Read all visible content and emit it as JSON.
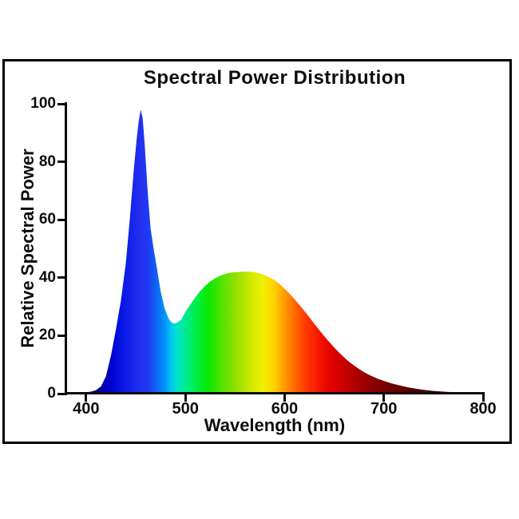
{
  "frame": {
    "background": "#ffffff",
    "border_color": "#000000"
  },
  "chart_data": {
    "type": "area",
    "title": "Spectral Power Distribution",
    "xlabel": "Wavelength (nm)",
    "ylabel": "Relative Spectral Power",
    "xlim": [
      380,
      800
    ],
    "ylim": [
      0,
      100
    ],
    "x_ticks": [
      400,
      500,
      600,
      700,
      800
    ],
    "y_ticks": [
      0,
      20,
      40,
      60,
      80,
      100
    ],
    "grid": false,
    "legend": "none",
    "description": "White LED spectrum: narrow blue peak ~455 nm (value 98), dip ~487 nm (value 24), broad phosphor hump peaking ~42 near 565 nm, fading tail to 800 nm; area under curve filled with spectral rainbow gradient",
    "points": [
      [
        380,
        0
      ],
      [
        388,
        0.1
      ],
      [
        395,
        0.3
      ],
      [
        400,
        0.5
      ],
      [
        405,
        0.7
      ],
      [
        410,
        1.2
      ],
      [
        415,
        2.5
      ],
      [
        420,
        6
      ],
      [
        425,
        13
      ],
      [
        430,
        22
      ],
      [
        435,
        32
      ],
      [
        440,
        45
      ],
      [
        444,
        60
      ],
      [
        448,
        77
      ],
      [
        451,
        88
      ],
      [
        453,
        94
      ],
      [
        455,
        98
      ],
      [
        457,
        95
      ],
      [
        459,
        86
      ],
      [
        462,
        70
      ],
      [
        465,
        57
      ],
      [
        468,
        50
      ],
      [
        471,
        44
      ],
      [
        475,
        35.5
      ],
      [
        479,
        29.5
      ],
      [
        483,
        26
      ],
      [
        486,
        24.6
      ],
      [
        489,
        24.2
      ],
      [
        492,
        24.6
      ],
      [
        496,
        25.6
      ],
      [
        500,
        28.2
      ],
      [
        505,
        30.8
      ],
      [
        510,
        33.2
      ],
      [
        515,
        35.4
      ],
      [
        520,
        37.2
      ],
      [
        525,
        38.7
      ],
      [
        530,
        39.8
      ],
      [
        535,
        40.7
      ],
      [
        540,
        41.3
      ],
      [
        545,
        41.7
      ],
      [
        550,
        41.9
      ],
      [
        555,
        42
      ],
      [
        560,
        42.1
      ],
      [
        565,
        42.1
      ],
      [
        570,
        41.9
      ],
      [
        575,
        41.5
      ],
      [
        580,
        40.9
      ],
      [
        585,
        40.1
      ],
      [
        590,
        39.1
      ],
      [
        595,
        37.8
      ],
      [
        600,
        36.2
      ],
      [
        605,
        34.5
      ],
      [
        610,
        32.6
      ],
      [
        615,
        30.6
      ],
      [
        620,
        28.5
      ],
      [
        625,
        26.3
      ],
      [
        630,
        24.1
      ],
      [
        635,
        21.9
      ],
      [
        640,
        19.8
      ],
      [
        645,
        17.8
      ],
      [
        650,
        15.9
      ],
      [
        655,
        14.1
      ],
      [
        660,
        12.5
      ],
      [
        665,
        11
      ],
      [
        670,
        9.7
      ],
      [
        675,
        8.5
      ],
      [
        680,
        7.4
      ],
      [
        685,
        6.5
      ],
      [
        690,
        5.7
      ],
      [
        695,
        5
      ],
      [
        700,
        4.4
      ],
      [
        708,
        3.5
      ],
      [
        716,
        2.8
      ],
      [
        724,
        2.2
      ],
      [
        732,
        1.7
      ],
      [
        740,
        1.3
      ],
      [
        750,
        0.95
      ],
      [
        760,
        0.7
      ],
      [
        770,
        0.5
      ],
      [
        780,
        0.35
      ],
      [
        790,
        0.22
      ],
      [
        800,
        0.12
      ]
    ],
    "gradient_stops": [
      [
        380,
        "#000018"
      ],
      [
        395,
        "#000040"
      ],
      [
        405,
        "#000070"
      ],
      [
        415,
        "#0000a0"
      ],
      [
        425,
        "#0000cc"
      ],
      [
        435,
        "#0714e4"
      ],
      [
        445,
        "#1524ec"
      ],
      [
        455,
        "#2430f0"
      ],
      [
        463,
        "#1e3cf2"
      ],
      [
        470,
        "#1060f4"
      ],
      [
        480,
        "#0098f8"
      ],
      [
        486,
        "#00c8f0"
      ],
      [
        492,
        "#00e4c8"
      ],
      [
        500,
        "#00ea96"
      ],
      [
        508,
        "#00ee5c"
      ],
      [
        516,
        "#00ee28"
      ],
      [
        524,
        "#10e800"
      ],
      [
        538,
        "#58e400"
      ],
      [
        552,
        "#98e000"
      ],
      [
        565,
        "#cce800"
      ],
      [
        578,
        "#f0f000"
      ],
      [
        590,
        "#ffd000"
      ],
      [
        600,
        "#ff9900"
      ],
      [
        612,
        "#ff6000"
      ],
      [
        624,
        "#ff3000"
      ],
      [
        636,
        "#f51200"
      ],
      [
        648,
        "#e00000"
      ],
      [
        662,
        "#c40000"
      ],
      [
        676,
        "#a40000"
      ],
      [
        690,
        "#8a0000"
      ],
      [
        702,
        "#760303"
      ],
      [
        720,
        "#5e0101"
      ],
      [
        740,
        "#4c0000"
      ],
      [
        765,
        "#3c0000"
      ],
      [
        800,
        "#2e0000"
      ]
    ]
  }
}
